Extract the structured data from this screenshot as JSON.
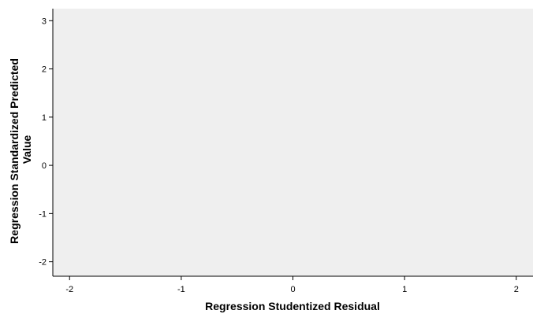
{
  "chart_data": {
    "type": "scatter",
    "xlabel": "Regression Studentized Residual",
    "ylabel_lines": [
      "Regression Standardized Predicted",
      "Value"
    ],
    "xlim": [
      -2.15,
      2.15
    ],
    "ylim": [
      -2.3,
      3.25
    ],
    "xticks": [
      -2,
      -1,
      0,
      1,
      2
    ],
    "yticks": [
      3,
      2,
      1,
      0,
      -1,
      -2
    ],
    "points": [],
    "grid": false,
    "plot_background": "#efefef",
    "axis_color": "#000000"
  }
}
